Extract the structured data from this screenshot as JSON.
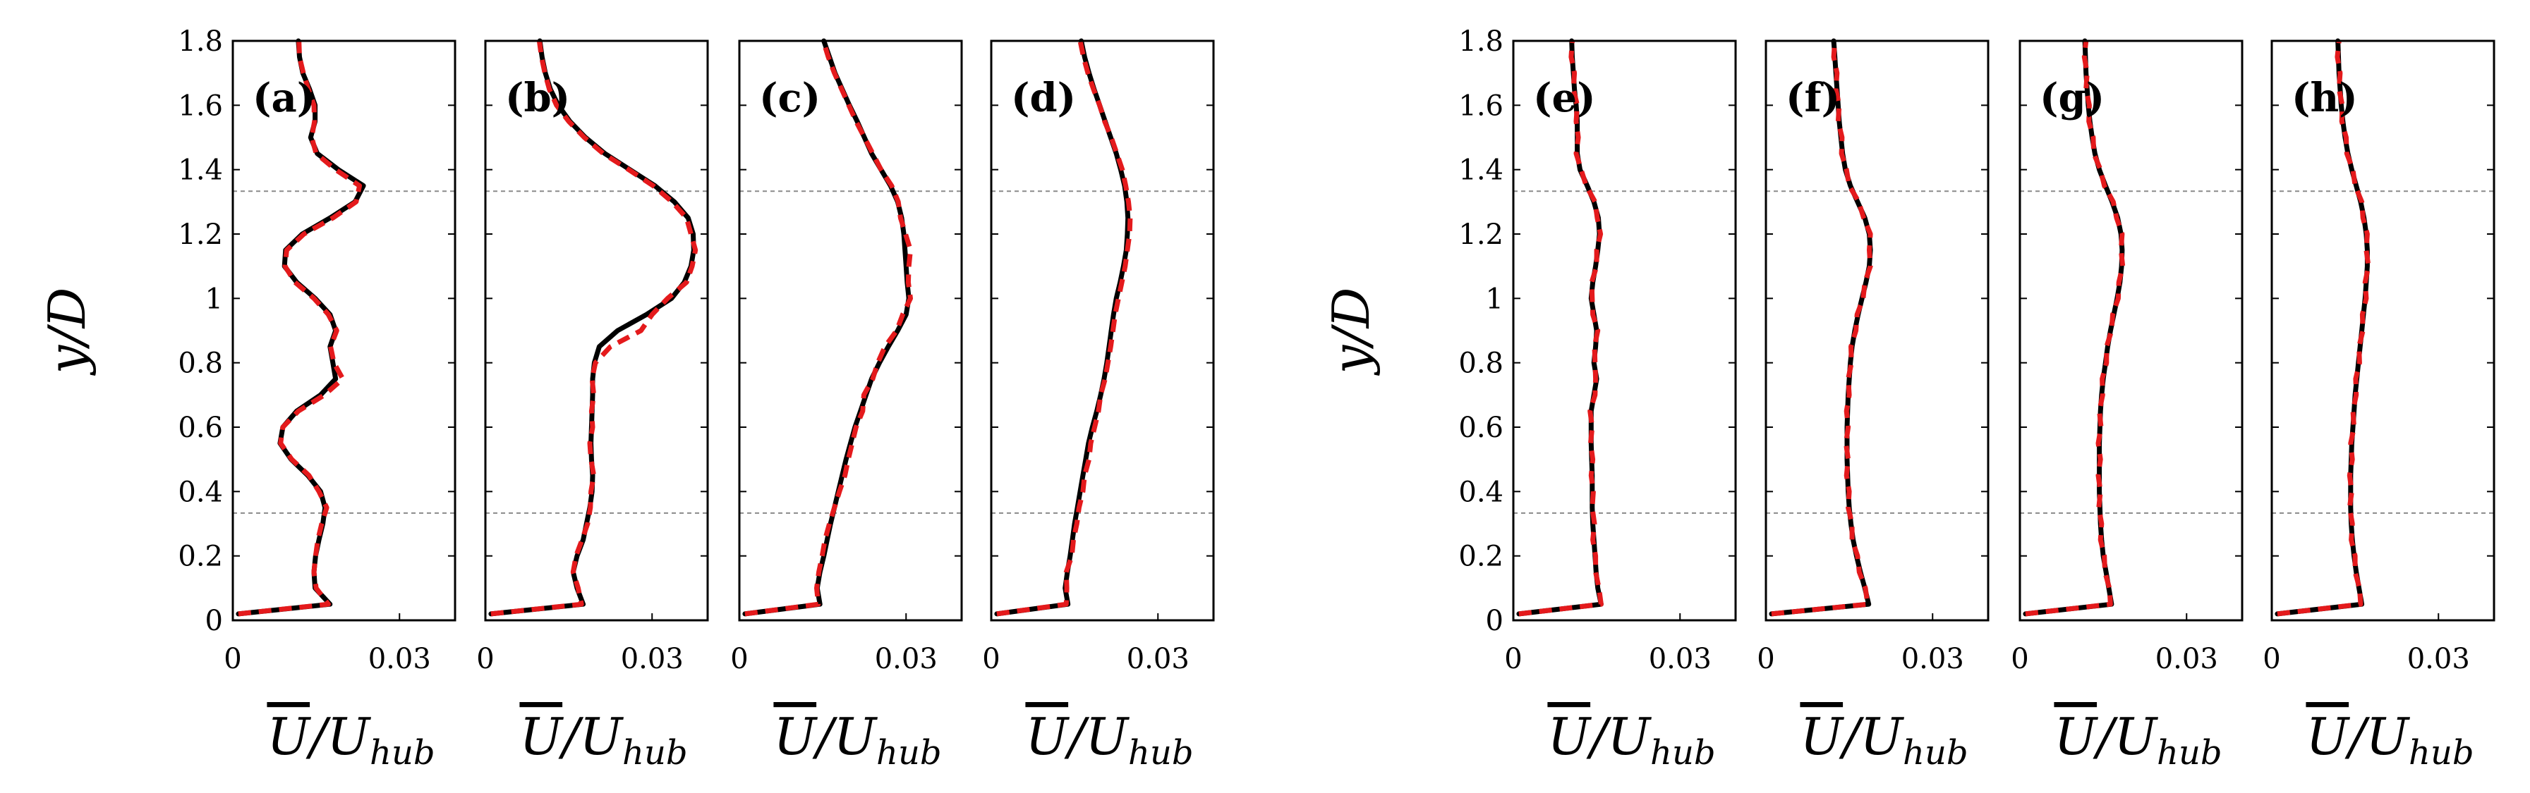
{
  "chart_data": {
    "type": "line",
    "ylabel": "y/D",
    "xlabel_parts": {
      "bar": "U",
      "sep": "/",
      "base": "U",
      "sub": "hub"
    },
    "ylim": [
      0,
      1.8
    ],
    "xlim": [
      0,
      0.04
    ],
    "yticks": [
      "0",
      "0.2",
      "0.4",
      "0.6",
      "0.8",
      "1",
      "1.2",
      "1.4",
      "1.6",
      "1.8"
    ],
    "xticks": [
      {
        "value": 0,
        "label": "0"
      },
      {
        "value": 0.03,
        "label": "0.03"
      }
    ],
    "hub_lines": [
      0.333,
      1.333
    ],
    "series_names": [
      "solid",
      "dashed"
    ],
    "y": [
      0.02,
      0.05,
      0.1,
      0.15,
      0.2,
      0.25,
      0.3,
      0.35,
      0.4,
      0.45,
      0.5,
      0.55,
      0.6,
      0.65,
      0.7,
      0.75,
      0.8,
      0.85,
      0.9,
      0.95,
      1.0,
      1.05,
      1.1,
      1.15,
      1.2,
      1.25,
      1.3,
      1.35,
      1.4,
      1.45,
      1.5,
      1.55,
      1.6,
      1.65,
      1.7,
      1.75,
      1.8
    ],
    "panels": [
      {
        "label": "(a)",
        "solid": [
          0.001,
          0.0175,
          0.0148,
          0.0146,
          0.0149,
          0.0155,
          0.0162,
          0.0166,
          0.0158,
          0.0135,
          0.0105,
          0.0085,
          0.009,
          0.0115,
          0.0158,
          0.0185,
          0.018,
          0.0175,
          0.0185,
          0.0175,
          0.0148,
          0.0115,
          0.0093,
          0.0095,
          0.0125,
          0.0175,
          0.022,
          0.0235,
          0.019,
          0.0152,
          0.014,
          0.0148,
          0.0148,
          0.0138,
          0.0126,
          0.012,
          0.0118
        ],
        "dashed": [
          0.001,
          0.0172,
          0.015,
          0.0146,
          0.0149,
          0.0153,
          0.016,
          0.0169,
          0.0155,
          0.0137,
          0.0106,
          0.0086,
          0.009,
          0.0118,
          0.0165,
          0.0198,
          0.0182,
          0.0176,
          0.0187,
          0.0172,
          0.0146,
          0.0112,
          0.0094,
          0.0097,
          0.0128,
          0.018,
          0.0222,
          0.0228,
          0.0185,
          0.015,
          0.0142,
          0.0147,
          0.0146,
          0.0136,
          0.0127,
          0.012,
          0.0119
        ]
      },
      {
        "label": "(b)",
        "solid": [
          0.001,
          0.0176,
          0.0165,
          0.0158,
          0.0165,
          0.0176,
          0.0182,
          0.0188,
          0.0192,
          0.0193,
          0.0191,
          0.019,
          0.0191,
          0.0192,
          0.0193,
          0.0193,
          0.0196,
          0.0205,
          0.0238,
          0.029,
          0.0335,
          0.0358,
          0.037,
          0.0375,
          0.0374,
          0.0365,
          0.034,
          0.0305,
          0.026,
          0.0215,
          0.018,
          0.0152,
          0.0131,
          0.0117,
          0.0108,
          0.0102,
          0.0098
        ],
        "dashed": [
          0.001,
          0.0173,
          0.0167,
          0.0158,
          0.0163,
          0.0174,
          0.0184,
          0.0189,
          0.019,
          0.0195,
          0.019,
          0.0188,
          0.0193,
          0.0191,
          0.0195,
          0.0192,
          0.0198,
          0.0225,
          0.028,
          0.03,
          0.0328,
          0.0362,
          0.0372,
          0.0378,
          0.037,
          0.0362,
          0.0336,
          0.0302,
          0.0258,
          0.0212,
          0.0178,
          0.015,
          0.0128,
          0.0115,
          0.0107,
          0.0101,
          0.0097
        ]
      },
      {
        "label": "(c)",
        "solid": [
          0.001,
          0.0145,
          0.014,
          0.0145,
          0.0152,
          0.0158,
          0.0164,
          0.0171,
          0.0178,
          0.0185,
          0.0192,
          0.02,
          0.0208,
          0.0218,
          0.0228,
          0.0238,
          0.0252,
          0.0268,
          0.0285,
          0.03,
          0.0305,
          0.0302,
          0.03,
          0.0298,
          0.0296,
          0.0292,
          0.0285,
          0.0272,
          0.0255,
          0.0238,
          0.0225,
          0.0212,
          0.0198,
          0.0185,
          0.0172,
          0.0162,
          0.0152
        ],
        "dashed": [
          0.001,
          0.0142,
          0.0139,
          0.0143,
          0.0149,
          0.0154,
          0.0162,
          0.0171,
          0.018,
          0.019,
          0.0196,
          0.0203,
          0.021,
          0.0222,
          0.0224,
          0.024,
          0.0249,
          0.0262,
          0.0283,
          0.0294,
          0.0308,
          0.0304,
          0.0305,
          0.0308,
          0.0299,
          0.029,
          0.0286,
          0.0274,
          0.0255,
          0.024,
          0.0225,
          0.021,
          0.0197,
          0.0184,
          0.0171,
          0.016,
          0.0151
        ]
      },
      {
        "label": "(d)",
        "solid": [
          0.001,
          0.0138,
          0.0133,
          0.0137,
          0.0142,
          0.0146,
          0.015,
          0.0155,
          0.016,
          0.0165,
          0.017,
          0.0175,
          0.0182,
          0.019,
          0.0197,
          0.0203,
          0.0208,
          0.0212,
          0.0216,
          0.022,
          0.0225,
          0.0232,
          0.0238,
          0.0243,
          0.0245,
          0.0246,
          0.0244,
          0.024,
          0.0233,
          0.0225,
          0.0215,
          0.0205,
          0.0195,
          0.0185,
          0.0176,
          0.0168,
          0.0162
        ],
        "dashed": [
          0.001,
          0.0135,
          0.0136,
          0.0135,
          0.0145,
          0.0148,
          0.0154,
          0.0158,
          0.0165,
          0.0168,
          0.0176,
          0.0179,
          0.0186,
          0.0193,
          0.0197,
          0.0205,
          0.021,
          0.0215,
          0.0219,
          0.0223,
          0.0229,
          0.0235,
          0.0241,
          0.0245,
          0.0249,
          0.025,
          0.0247,
          0.0242,
          0.0236,
          0.0226,
          0.0216,
          0.0204,
          0.0195,
          0.0184,
          0.0174,
          0.0166,
          0.016
        ]
      },
      {
        "label": "(e)",
        "solid": [
          0.001,
          0.0158,
          0.0152,
          0.0149,
          0.0147,
          0.0145,
          0.0143,
          0.0142,
          0.0142,
          0.0142,
          0.0141,
          0.014,
          0.014,
          0.014,
          0.0145,
          0.015,
          0.0145,
          0.0148,
          0.015,
          0.0145,
          0.014,
          0.0143,
          0.0148,
          0.0152,
          0.0155,
          0.0153,
          0.0145,
          0.0133,
          0.012,
          0.0115,
          0.0115,
          0.0115,
          0.0113,
          0.011,
          0.0108,
          0.0106,
          0.0105
        ],
        "dashed": [
          0.001,
          0.0158,
          0.0154,
          0.0148,
          0.0148,
          0.0143,
          0.0146,
          0.0142,
          0.0144,
          0.014,
          0.0143,
          0.0139,
          0.0142,
          0.0138,
          0.0147,
          0.0148,
          0.0147,
          0.0146,
          0.0152,
          0.0143,
          0.0142,
          0.0141,
          0.015,
          0.015,
          0.0157,
          0.0151,
          0.0147,
          0.0131,
          0.0122,
          0.0113,
          0.0117,
          0.0113,
          0.0115,
          0.0108,
          0.011,
          0.0104,
          0.0106
        ]
      },
      {
        "label": "(f)",
        "solid": [
          0.001,
          0.0185,
          0.0178,
          0.017,
          0.0163,
          0.0157,
          0.0153,
          0.015,
          0.0148,
          0.0147,
          0.0146,
          0.0146,
          0.0146,
          0.0147,
          0.0148,
          0.015,
          0.0152,
          0.0155,
          0.016,
          0.0166,
          0.0173,
          0.018,
          0.0186,
          0.0188,
          0.0186,
          0.0178,
          0.0165,
          0.0152,
          0.0143,
          0.0138,
          0.0135,
          0.0132,
          0.013,
          0.0128,
          0.0126,
          0.0124,
          0.0122
        ],
        "dashed": [
          0.001,
          0.0183,
          0.0179,
          0.0168,
          0.0165,
          0.0155,
          0.0155,
          0.0148,
          0.015,
          0.0145,
          0.0148,
          0.0144,
          0.0148,
          0.0145,
          0.015,
          0.0148,
          0.0154,
          0.0153,
          0.0162,
          0.0164,
          0.0175,
          0.0178,
          0.0188,
          0.0186,
          0.0188,
          0.0176,
          0.0167,
          0.015,
          0.0145,
          0.0136,
          0.0137,
          0.013,
          0.0132,
          0.0126,
          0.0128,
          0.0122,
          0.0124
        ]
      },
      {
        "label": "(g)",
        "solid": [
          0.001,
          0.0165,
          0.016,
          0.0155,
          0.015,
          0.0147,
          0.0145,
          0.0144,
          0.0143,
          0.0143,
          0.0143,
          0.0143,
          0.0144,
          0.0145,
          0.0147,
          0.015,
          0.0154,
          0.0158,
          0.0163,
          0.0169,
          0.0175,
          0.018,
          0.0183,
          0.0184,
          0.0182,
          0.0176,
          0.0166,
          0.0154,
          0.0143,
          0.0135,
          0.013,
          0.0126,
          0.0123,
          0.0121,
          0.0119,
          0.0118,
          0.0117
        ],
        "dashed": [
          0.001,
          0.0163,
          0.0161,
          0.0153,
          0.0152,
          0.0145,
          0.0147,
          0.0142,
          0.0145,
          0.0141,
          0.0145,
          0.0141,
          0.0146,
          0.0143,
          0.0149,
          0.0148,
          0.0156,
          0.0156,
          0.0165,
          0.0167,
          0.0177,
          0.0178,
          0.0185,
          0.0182,
          0.0184,
          0.0174,
          0.0168,
          0.0152,
          0.0145,
          0.0133,
          0.0132,
          0.0124,
          0.0125,
          0.0119,
          0.0121,
          0.0116,
          0.0119
        ]
      },
      {
        "label": "(h)",
        "solid": [
          0.001,
          0.0162,
          0.0157,
          0.0152,
          0.0148,
          0.0145,
          0.0143,
          0.0142,
          0.0142,
          0.0142,
          0.0143,
          0.0144,
          0.0146,
          0.0148,
          0.015,
          0.0153,
          0.0156,
          0.0159,
          0.0162,
          0.0165,
          0.0168,
          0.017,
          0.0172,
          0.0172,
          0.017,
          0.0166,
          0.016,
          0.0152,
          0.0144,
          0.0137,
          0.0132,
          0.0128,
          0.0125,
          0.0123,
          0.0121,
          0.012,
          0.0119
        ],
        "dashed": [
          0.001,
          0.016,
          0.0158,
          0.015,
          0.015,
          0.0143,
          0.0145,
          0.014,
          0.0144,
          0.014,
          0.0145,
          0.0142,
          0.0148,
          0.0146,
          0.0152,
          0.0151,
          0.0158,
          0.0157,
          0.0164,
          0.0163,
          0.017,
          0.0168,
          0.0174,
          0.017,
          0.0172,
          0.0164,
          0.0162,
          0.015,
          0.0146,
          0.0135,
          0.0134,
          0.0126,
          0.0127,
          0.0121,
          0.0123,
          0.0118,
          0.0121
        ]
      }
    ]
  }
}
